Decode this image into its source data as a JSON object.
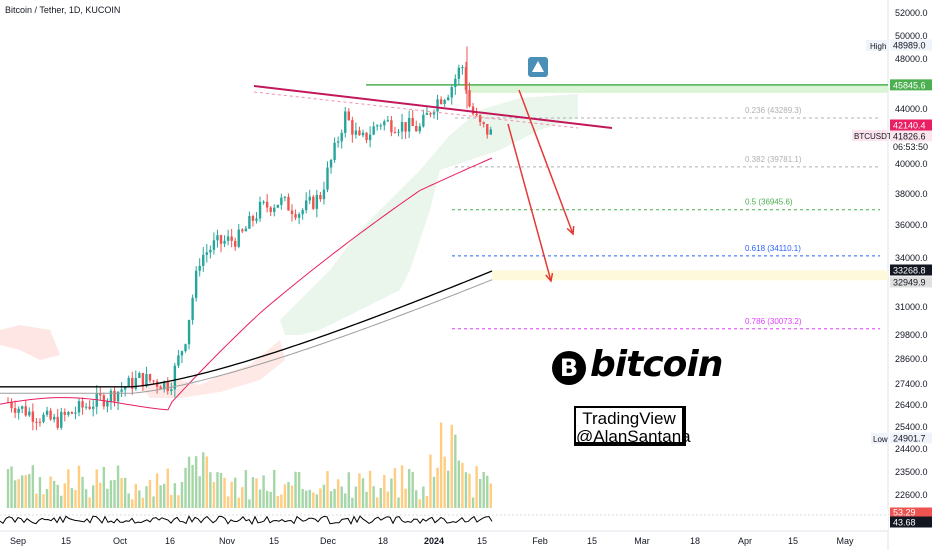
{
  "header": {
    "title": "Bitcoin / Tether, 1D, KUCOIN"
  },
  "chart_data": {
    "type": "candlestick",
    "symbol": "BTCUSDT",
    "title": "Bitcoin / Tether, 1D, KUCOIN",
    "y_ticks": [
      52000,
      50000,
      48000,
      46000,
      44000,
      42000,
      40000,
      38000,
      36000,
      34000,
      33500,
      31000,
      29800,
      28600,
      27400,
      26400,
      25400,
      24400,
      23500,
      22600
    ],
    "x_ticks": [
      "Sep",
      "15",
      "Oct",
      "16",
      "Nov",
      "15",
      "Dec",
      "18",
      "2024",
      "15",
      "Feb",
      "15",
      "Mar",
      "18",
      "Apr",
      "15",
      "May"
    ],
    "y_range": [
      22000,
      53000
    ],
    "scale": "log",
    "price_labels": {
      "high": {
        "label": "High",
        "value": "48989.0"
      },
      "resistance": "45845.6",
      "last": "42140.4",
      "symbol_label": "BTCUSDT",
      "symbol_value": "41826.6",
      "countdown": "06:53:50",
      "ma1": "33268.8",
      "ma2": "32949.9",
      "low": {
        "label": "Low",
        "value": "24901.7"
      },
      "osc1": "53.29",
      "osc2": "43.68"
    },
    "fibonacci": [
      {
        "label": "0.236 (43289.3)",
        "value": 43289.3,
        "color": "#b0b0b0"
      },
      {
        "label": "0.382 (39781.1)",
        "value": 39781.1,
        "color": "#b0b0b0"
      },
      {
        "label": "0.5 (36945.6)",
        "value": 36945.6,
        "color": "#4caf50"
      },
      {
        "label": "0.618 (34110.1)",
        "value": 34110.1,
        "color": "#2962ff"
      },
      {
        "label": "0.786 (30073.2)",
        "value": 30073.2,
        "color": "#e040fb"
      }
    ],
    "resistance_zone": {
      "value": 45845.6
    },
    "support_zone": {
      "top": 33268.8,
      "bottom": 32700
    },
    "colors": {
      "up": "#26a69a",
      "down": "#ef5350",
      "ma_pink": "#e91e63",
      "ma_black": "#000000",
      "resistance": "#4caf50",
      "trendline": "#c2185b",
      "arrow": "#e53935"
    }
  },
  "watermark": {
    "line1": "TradingView",
    "line2": "@AlanSantana",
    "logo_text": "bitcoin",
    "logo_symbol": "B"
  }
}
